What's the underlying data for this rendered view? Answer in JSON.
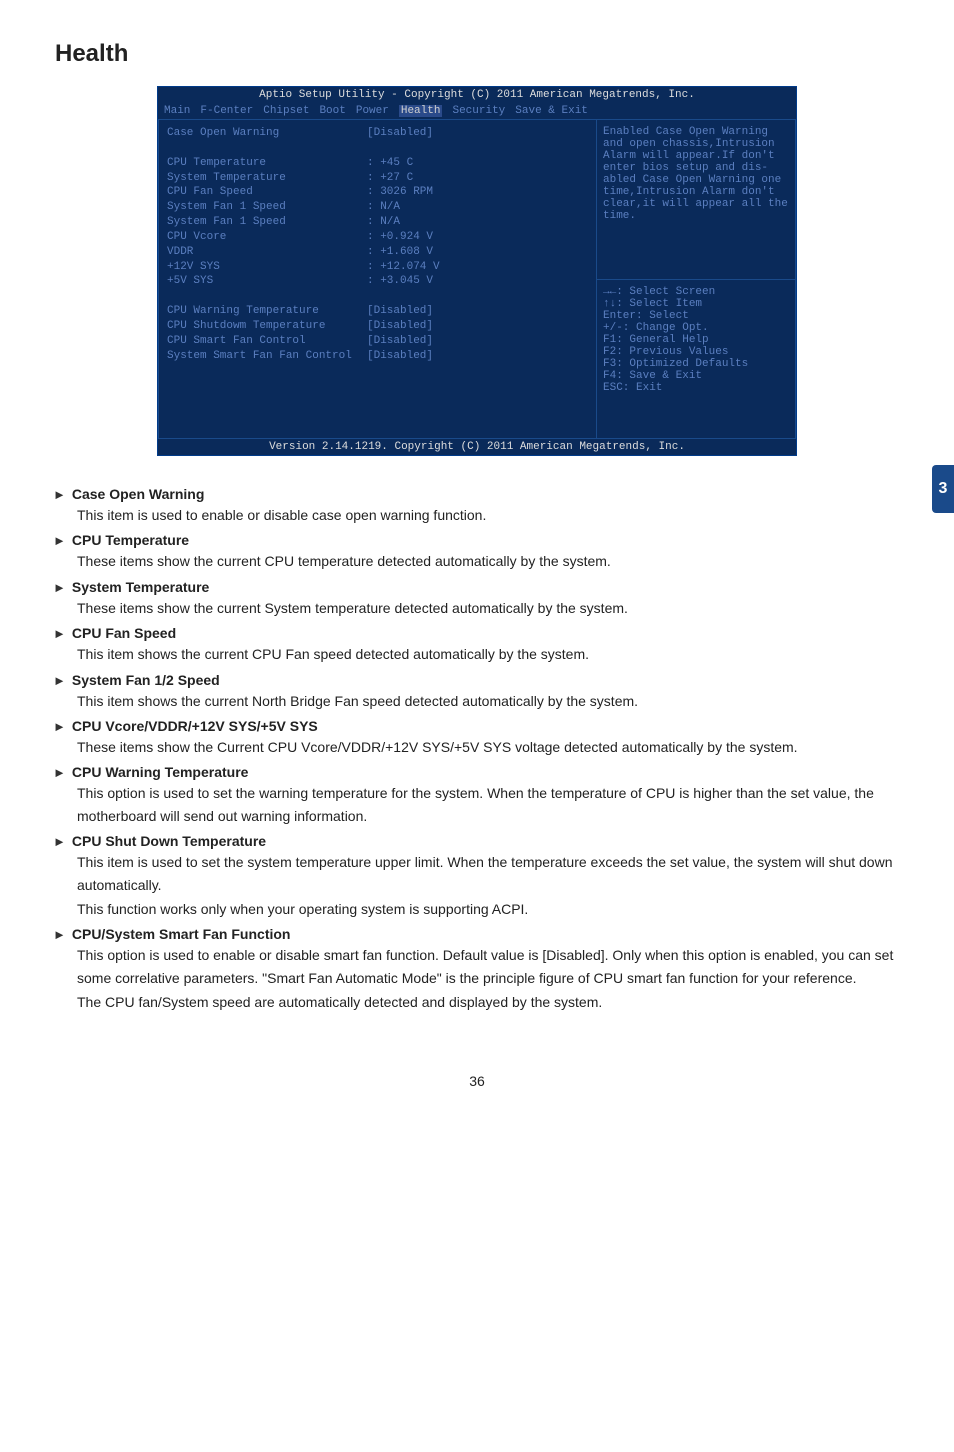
{
  "page": {
    "title": "Health",
    "number": "36"
  },
  "sideTab": "3",
  "bios": {
    "title": "Aptio Setup Utility - Copyright (C) 2011 American Megatrends, Inc.",
    "footer": "Version 2.14.1219. Copyright (C) 2011 American Megatrends, Inc.",
    "menu": {
      "items": [
        "Main",
        "F-Center",
        "Chipset",
        "Boot",
        "Power",
        "Health",
        "Security",
        "Save & Exit"
      ],
      "selIdx": 5
    },
    "rows1": [
      {
        "label": "Case Open Warning",
        "val": "[Disabled]"
      },
      {
        "label": "",
        "val": ""
      },
      {
        "label": "CPU Temperature",
        "val": ": +45 C"
      },
      {
        "label": "System Temperature",
        "val": ": +27 C"
      },
      {
        "label": "CPU Fan Speed",
        "val": ": 3026 RPM"
      },
      {
        "label": "System Fan 1 Speed",
        "val": ": N/A"
      },
      {
        "label": "System Fan 1 Speed",
        "val": ": N/A"
      },
      {
        "label": "CPU Vcore",
        "val": ": +0.924 V"
      },
      {
        "label": "VDDR",
        "val": ": +1.608 V"
      },
      {
        "label": "+12V SYS",
        "val": ": +12.074 V"
      },
      {
        "label": "+5V SYS",
        "val": ": +3.045 V"
      },
      {
        "label": "",
        "val": ""
      },
      {
        "label": "CPU Warning Temperature",
        "val": "[Disabled]"
      },
      {
        "label": "CPU Shutdowm Temperature",
        "val": "[Disabled]"
      },
      {
        "label": "CPU Smart Fan Control",
        "val": "[Disabled]"
      },
      {
        "label": "System Smart Fan Fan Control",
        "val": "[Disabled]"
      }
    ],
    "helpLines": [
      "Enabled Case Open Warning",
      "and open chassis,Intrusion",
      "Alarm will appear.If don't",
      "enter bios setup and dis-",
      "abled Case Open Warning one",
      "time,Intrusion Alarm don't",
      "clear,it will appear all the",
      "time."
    ],
    "keyLines": [
      "→←: Select Screen",
      "↑↓: Select Item",
      "Enter: Select",
      "+/-: Change Opt.",
      "F1: General Help",
      "F2: Previous Values",
      "F3: Optimized Defaults",
      "F4: Save & Exit",
      "ESC: Exit"
    ]
  },
  "items": [
    {
      "h": "Case Open Warning",
      "p": [
        "This item is used to enable or disable case open warning function."
      ]
    },
    {
      "h": "CPU Temperature",
      "p": [
        "These items show the current CPU temperature detected automatically by the system."
      ]
    },
    {
      "h": "System Temperature",
      "p": [
        "These items show the current System temperature detected automatically by the system."
      ]
    },
    {
      "h": "CPU Fan Speed",
      "p": [
        "This item shows the current CPU Fan speed detected automatically by the system."
      ]
    },
    {
      "h": "System Fan 1/2 Speed",
      "p": [
        "This item shows the current North Bridge Fan speed detected automatically by the system."
      ]
    },
    {
      "h": "CPU Vcore/VDDR/+12V SYS/+5V SYS",
      "p": [
        "These items show the Current CPU Vcore/VDDR/+12V SYS/+5V SYS voltage detected automatically by the system."
      ]
    },
    {
      "h": "CPU Warning Temperature",
      "p": [
        "This option is used to set the warning temperature for the system. When the temperature of CPU is higher than the set value, the motherboard will send out warning information."
      ]
    },
    {
      "h": "CPU Shut Down Temperature",
      "p": [
        "This item is used to set the system temperature upper limit. When the temperature exceeds the set value, the system will shut down automatically.",
        "This function works only when your operating system is supporting ACPI."
      ]
    },
    {
      "h": "CPU/System Smart Fan Function",
      "p": [
        "This option is used to enable or disable smart fan function. Default value is [Disabled]. Only when this option is enabled, you can set some correlative parameters. \"Smart Fan Automatic Mode\" is the principle figure of CPU smart fan function for your reference.",
        "The CPU fan/System speed are automatically detected and displayed by the system."
      ]
    }
  ]
}
